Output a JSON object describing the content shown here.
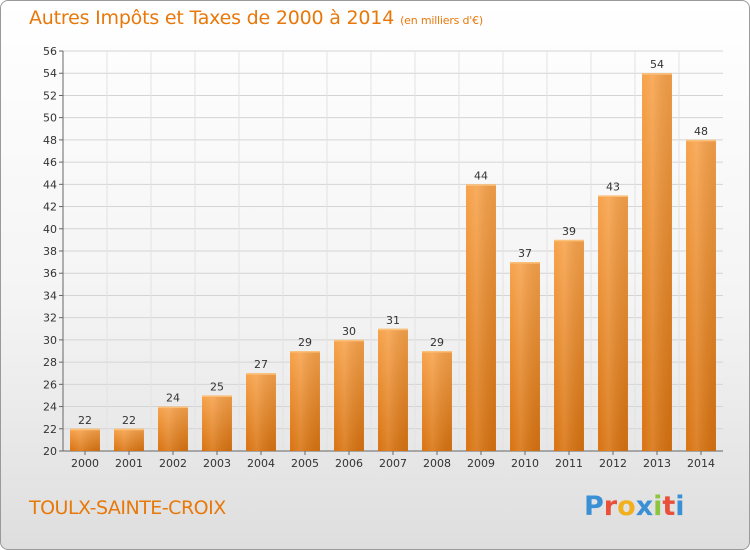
{
  "header": {
    "title": "Autres Impôts et Taxes de 2000 à 2014",
    "subtitle": "(en milliers d'€)"
  },
  "footer": {
    "place": "TOULX-SAINTE-CROIX",
    "logo_letters": [
      "P",
      "r",
      "o",
      "x",
      "i",
      "t",
      "i"
    ],
    "logo_colors": [
      "#3b8fd4",
      "#e8503a",
      "#f0b020",
      "#3b8fd4",
      "#8cc63f",
      "#e8503a",
      "#3b8fd4"
    ]
  },
  "chart_data": {
    "type": "bar",
    "title": "Autres Impôts et Taxes de 2000 à 2014",
    "subtitle": "(en milliers d'€)",
    "categories": [
      "2000",
      "2001",
      "2002",
      "2003",
      "2004",
      "2005",
      "2006",
      "2007",
      "2008",
      "2009",
      "2010",
      "2011",
      "2012",
      "2013",
      "2014"
    ],
    "values": [
      22,
      22,
      24,
      25,
      27,
      29,
      30,
      31,
      29,
      44,
      37,
      39,
      43,
      54,
      48
    ],
    "ylim": [
      20,
      56
    ],
    "yticks": [
      20,
      22,
      24,
      26,
      28,
      30,
      32,
      34,
      36,
      38,
      40,
      42,
      44,
      46,
      48,
      50,
      52,
      54,
      56
    ],
    "grid": true,
    "bar_color": "#f0902a"
  }
}
